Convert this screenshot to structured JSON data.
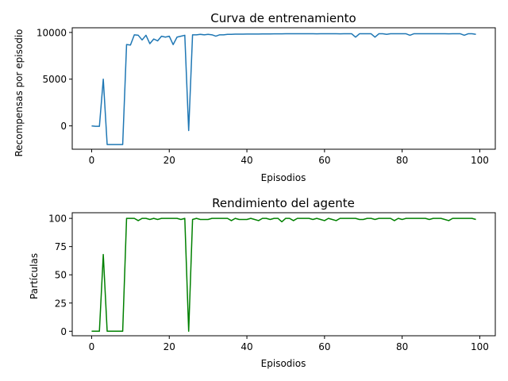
{
  "chart_data": [
    {
      "type": "line",
      "title": "Curva de entrenamiento",
      "xlabel": "Episodios",
      "ylabel": "Recompensas por episodio",
      "xlim": [
        -5,
        104
      ],
      "ylim": [
        -2500,
        10500
      ],
      "xticks": [
        0,
        20,
        40,
        60,
        80,
        100
      ],
      "yticks": [
        0,
        5000,
        10000
      ],
      "grid": false,
      "color": "#1f77b4",
      "series": [
        {
          "values": [
            0,
            -50,
            -50,
            5000,
            -2000,
            -2000,
            -2000,
            -2000,
            -2000,
            8700,
            8650,
            9750,
            9700,
            9200,
            9700,
            8800,
            9300,
            9100,
            9600,
            9500,
            9600,
            8700,
            9500,
            9600,
            9700,
            -500,
            9750,
            9750,
            9800,
            9750,
            9800,
            9750,
            9600,
            9750,
            9750,
            9800,
            9800,
            9820,
            9820,
            9820,
            9830,
            9830,
            9830,
            9830,
            9840,
            9840,
            9840,
            9850,
            9850,
            9850,
            9860,
            9860,
            9860,
            9860,
            9860,
            9860,
            9860,
            9860,
            9850,
            9860,
            9860,
            9860,
            9860,
            9860,
            9850,
            9860,
            9860,
            9860,
            9500,
            9860,
            9860,
            9860,
            9860,
            9500,
            9860,
            9860,
            9800,
            9860,
            9860,
            9860,
            9860,
            9860,
            9700,
            9860,
            9860,
            9860,
            9860,
            9860,
            9860,
            9860,
            9860,
            9860,
            9850,
            9860,
            9860,
            9860,
            9700,
            9860,
            9860,
            9800
          ]
        }
      ]
    },
    {
      "type": "line",
      "title": "Rendimiento del agente",
      "xlabel": "Episodios",
      "ylabel": "Partículas",
      "xlim": [
        -5,
        104
      ],
      "ylim": [
        -4,
        105
      ],
      "xticks": [
        0,
        20,
        40,
        60,
        80,
        100
      ],
      "yticks": [
        0,
        25,
        50,
        75,
        100
      ],
      "grid": false,
      "color": "#008000",
      "series": [
        {
          "values": [
            0,
            0,
            0,
            68,
            0,
            0,
            0,
            0,
            0,
            100,
            100,
            100,
            98,
            100,
            100,
            99,
            100,
            99,
            100,
            100,
            100,
            100,
            100,
            99,
            100,
            0,
            99,
            100,
            99,
            99,
            99,
            100,
            100,
            100,
            100,
            100,
            98,
            100,
            99,
            99,
            99,
            100,
            99,
            98,
            100,
            100,
            99,
            100,
            100,
            97,
            100,
            100,
            98,
            100,
            100,
            100,
            100,
            99,
            100,
            99,
            98,
            100,
            99,
            98,
            100,
            100,
            100,
            100,
            100,
            99,
            99,
            100,
            100,
            99,
            100,
            100,
            100,
            100,
            98,
            100,
            99,
            100,
            100,
            100,
            100,
            100,
            100,
            99,
            100,
            100,
            100,
            99,
            98,
            100,
            100,
            100,
            100,
            100,
            100,
            99
          ]
        }
      ]
    }
  ]
}
